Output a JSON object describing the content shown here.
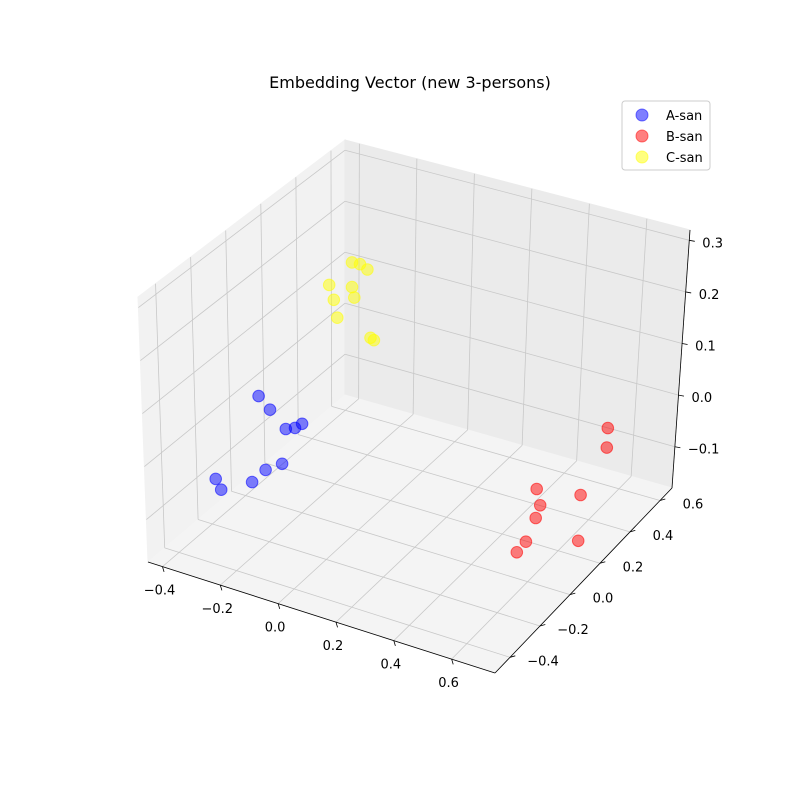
{
  "chart_data": {
    "type": "scatter",
    "subtype": "3d",
    "title": "Embedding Vector (new 3-persons)",
    "xlabel": "",
    "ylabel": "",
    "zlabel": "",
    "xlim": [
      -0.45,
      0.75
    ],
    "ylim": [
      -0.5,
      0.68
    ],
    "zlim": [
      -0.18,
      0.32
    ],
    "x_ticks": [
      -0.4,
      -0.2,
      0.0,
      0.2,
      0.4,
      0.6
    ],
    "x_tick_labels": [
      "−0.4",
      "−0.2",
      "0.0",
      "0.2",
      "0.4",
      "0.6"
    ],
    "y_ticks": [
      -0.4,
      -0.2,
      0.0,
      0.2,
      0.4,
      0.6
    ],
    "y_tick_labels": [
      "−0.4",
      "−0.2",
      "0.0",
      "0.2",
      "0.4",
      "0.6"
    ],
    "z_ticks": [
      -0.1,
      0.0,
      0.1,
      0.2,
      0.3
    ],
    "z_tick_labels": [
      "−0.1",
      "0.0",
      "0.1",
      "0.2",
      "0.3"
    ],
    "grid": true,
    "legend_position": "top-right",
    "series": [
      {
        "name": "A-san",
        "color": "#0000ff",
        "points": [
          [
            -0.05,
            -0.5,
            0.2
          ],
          [
            -0.03,
            -0.47,
            0.17
          ],
          [
            -0.01,
            -0.36,
            0.11
          ],
          [
            -0.03,
            -0.38,
            0.11
          ],
          [
            -0.02,
            -0.3,
            0.1
          ],
          [
            -0.12,
            -0.35,
            0.01
          ],
          [
            -0.08,
            -0.32,
            0.02
          ],
          [
            -0.15,
            -0.38,
            -0.01
          ],
          [
            -0.27,
            -0.36,
            -0.05
          ],
          [
            -0.3,
            -0.34,
            -0.04
          ]
        ]
      },
      {
        "name": "B-san",
        "color": "#ff0000",
        "points": [
          [
            0.69,
            0.33,
            0.03
          ],
          [
            0.7,
            0.31,
            0.0
          ],
          [
            0.62,
            0.3,
            -0.1
          ],
          [
            0.67,
            0.2,
            -0.15
          ],
          [
            0.66,
            -0.07,
            -0.03
          ],
          [
            0.64,
            -0.03,
            0.01
          ],
          [
            0.68,
            -0.08,
            0.0
          ],
          [
            0.67,
            -0.15,
            -0.05
          ],
          [
            0.66,
            -0.19,
            -0.06
          ]
        ]
      },
      {
        "name": "C-san",
        "color": "#ffff00",
        "points": [
          [
            -0.3,
            0.34,
            0.15
          ],
          [
            -0.29,
            0.35,
            0.12
          ],
          [
            -0.29,
            0.37,
            0.08
          ],
          [
            -0.25,
            0.39,
            0.14
          ],
          [
            -0.26,
            0.42,
            0.11
          ],
          [
            -0.28,
            0.44,
            0.17
          ],
          [
            -0.27,
            0.47,
            0.16
          ],
          [
            -0.25,
            0.48,
            0.15
          ],
          [
            -0.22,
            0.45,
            0.03
          ],
          [
            -0.22,
            0.47,
            0.02
          ]
        ]
      }
    ]
  }
}
